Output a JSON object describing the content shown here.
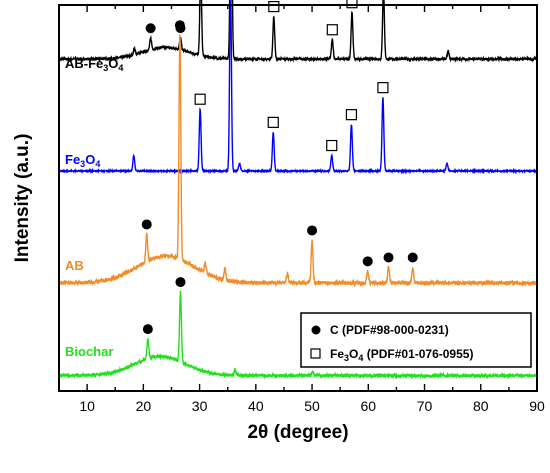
{
  "chart_data": {
    "type": "line",
    "xlabel": "2θ (degree)",
    "ylabel": "Intensity (a.u.)",
    "xlim": [
      5,
      90
    ],
    "xticks": [
      10,
      20,
      30,
      40,
      50,
      60,
      70,
      80,
      90
    ],
    "grid": false,
    "legend": {
      "placement": "bottom-right",
      "entries": [
        {
          "marker": "filled-circle",
          "label": "C (PDF#98-000-0231)"
        },
        {
          "marker": "open-square",
          "label_main": "Fe",
          "sub1": "3",
          "mid": "O",
          "sub2": "4",
          "label_rest": " (PDF#01-076-0955)"
        }
      ]
    },
    "series": [
      {
        "name": "AB-Fe3O4",
        "label_parts": [
          "AB-Fe",
          "3",
          "O",
          "4"
        ],
        "color": "#000000",
        "baseline": 0.86,
        "noise": 0.006,
        "hump": {
          "center": 24,
          "width": 4,
          "height": 0.03
        },
        "peaks": [
          [
            18.4,
            0.015
          ],
          [
            21.3,
            0.03
          ],
          [
            26.6,
            0.03
          ],
          [
            30.2,
            0.21
          ],
          [
            35.6,
            0.58
          ],
          [
            43.2,
            0.11
          ],
          [
            53.6,
            0.05
          ],
          [
            57.1,
            0.12
          ],
          [
            62.7,
            0.18
          ],
          [
            74.2,
            0.02
          ]
        ],
        "markers": [
          {
            "x": 21.3,
            "type": "circle"
          },
          {
            "x": 26.6,
            "type": "circle"
          },
          {
            "x": 30.2,
            "type": "square"
          },
          {
            "x": 35.6,
            "type": "square"
          },
          {
            "x": 43.2,
            "type": "square"
          },
          {
            "x": 53.6,
            "type": "square"
          },
          {
            "x": 57.1,
            "type": "square"
          },
          {
            "x": 62.7,
            "type": "square"
          }
        ]
      },
      {
        "name": "Fe3O4",
        "label_parts": [
          "Fe",
          "3",
          "O",
          "4"
        ],
        "color": "#0000ff",
        "baseline": 0.57,
        "noise": 0.003,
        "hump": {
          "center": 24,
          "width": 4,
          "height": 0.0
        },
        "peaks": [
          [
            18.3,
            0.04
          ],
          [
            30.1,
            0.16
          ],
          [
            35.5,
            0.48
          ],
          [
            37.1,
            0.02
          ],
          [
            43.1,
            0.1
          ],
          [
            53.5,
            0.04
          ],
          [
            57.0,
            0.12
          ],
          [
            62.6,
            0.19
          ],
          [
            74.0,
            0.02
          ]
        ],
        "markers": [
          {
            "x": 30.1,
            "type": "square"
          },
          {
            "x": 35.5,
            "type": "square"
          },
          {
            "x": 43.1,
            "type": "square"
          },
          {
            "x": 53.5,
            "type": "square"
          },
          {
            "x": 57.0,
            "type": "square"
          },
          {
            "x": 62.6,
            "type": "square"
          }
        ]
      },
      {
        "name": "AB",
        "label_parts": [
          "AB"
        ],
        "color": "#f28c28",
        "baseline": 0.28,
        "noise": 0.01,
        "hump": {
          "center": 24,
          "width": 5,
          "height": 0.07
        },
        "peaks": [
          [
            20.6,
            0.07
          ],
          [
            26.5,
            0.58
          ],
          [
            31.0,
            0.025
          ],
          [
            34.5,
            0.03
          ],
          [
            45.6,
            0.025
          ],
          [
            50.0,
            0.11
          ],
          [
            59.9,
            0.03
          ],
          [
            63.6,
            0.04
          ],
          [
            67.9,
            0.04
          ]
        ],
        "markers": [
          {
            "x": 20.6,
            "type": "circle"
          },
          {
            "x": 26.5,
            "type": "circle"
          },
          {
            "x": 50.0,
            "type": "circle"
          },
          {
            "x": 59.9,
            "type": "circle"
          },
          {
            "x": 63.6,
            "type": "circle"
          },
          {
            "x": 67.9,
            "type": "circle"
          }
        ]
      },
      {
        "name": "Biochar",
        "label_parts": [
          "Biochar"
        ],
        "color": "#22e01e",
        "baseline": 0.04,
        "noise": 0.008,
        "hump": {
          "center": 23,
          "width": 4.5,
          "height": 0.05
        },
        "peaks": [
          [
            20.8,
            0.05
          ],
          [
            26.6,
            0.18
          ],
          [
            36.3,
            0.015
          ],
          [
            50.1,
            0.01
          ]
        ],
        "markers": [
          {
            "x": 20.8,
            "type": "circle"
          },
          {
            "x": 26.6,
            "type": "circle"
          }
        ]
      }
    ]
  }
}
